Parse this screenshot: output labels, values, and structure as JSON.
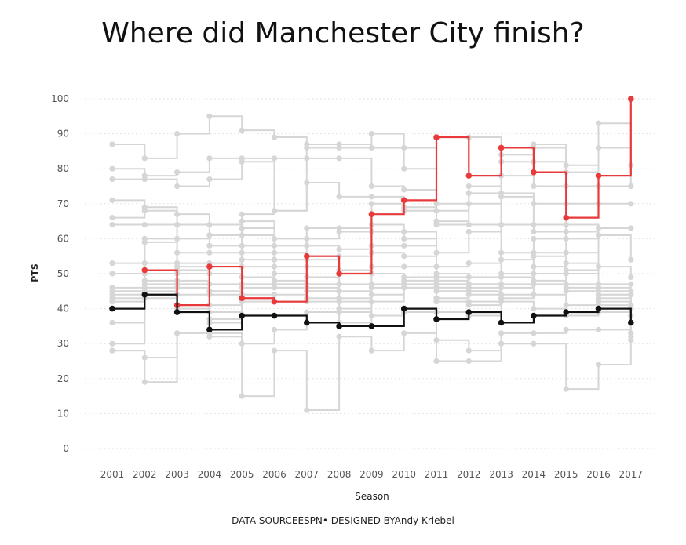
{
  "chart_data": {
    "type": "line",
    "title": "Where did Manchester City finish?",
    "xlabel": "Season",
    "ylabel": "PTS",
    "ylim": [
      0,
      100
    ],
    "yticks": [
      0,
      10,
      20,
      30,
      40,
      50,
      60,
      70,
      80,
      90,
      100
    ],
    "categories": [
      "2001",
      "2002",
      "2003",
      "2004",
      "2005",
      "2006",
      "2007",
      "2008",
      "2009",
      "2010",
      "2011",
      "2012",
      "2013",
      "2014",
      "2015",
      "2016",
      "2017"
    ],
    "line_shape": "step",
    "grid": "horizontal dotted",
    "series": [
      {
        "name": "",
        "color": "#e83a3a",
        "values": [
          null,
          51,
          41,
          52,
          43,
          42,
          55,
          50,
          67,
          71,
          89,
          78,
          86,
          79,
          66,
          78,
          100
        ]
      },
      {
        "name": "",
        "color": "#111111",
        "values": [
          40,
          44,
          39,
          34,
          38,
          38,
          36,
          35,
          35,
          40,
          37,
          39,
          36,
          38,
          39,
          40,
          36
        ]
      },
      {
        "name": "",
        "color": "#d6d6d6",
        "values": [
          87,
          83,
          90,
          95,
          91,
          89,
          87,
          86,
          90,
          86,
          89,
          89,
          86,
          87,
          81,
          93,
          81
        ]
      },
      {
        "name": "",
        "color": "#d6d6d6",
        "values": [
          80,
          78,
          79,
          83,
          83,
          83,
          86,
          87,
          86,
          80,
          70,
          75,
          84,
          86,
          79,
          86,
          75
        ]
      },
      {
        "name": "",
        "color": "#d6d6d6",
        "values": [
          77,
          77,
          75,
          77,
          82,
          68,
          83,
          83,
          75,
          74,
          68,
          73,
          82,
          82,
          75,
          75,
          75
        ]
      },
      {
        "name": "",
        "color": "#d6d6d6",
        "values": [
          71,
          69,
          67,
          64,
          67,
          68,
          76,
          72,
          72,
          69,
          65,
          70,
          78,
          75,
          70,
          70,
          70
        ]
      },
      {
        "name": "",
        "color": "#d6d6d6",
        "values": [
          66,
          68,
          64,
          61,
          65,
          60,
          63,
          63,
          70,
          68,
          64,
          64,
          73,
          70,
          64,
          63,
          63
        ]
      },
      {
        "name": "",
        "color": "#d6d6d6",
        "values": [
          64,
          64,
          60,
          58,
          63,
          58,
          60,
          62,
          64,
          62,
          56,
          62,
          72,
          64,
          62,
          61,
          54
        ]
      },
      {
        "name": "",
        "color": "#d6d6d6",
        "values": [
          53,
          60,
          56,
          56,
          61,
          56,
          58,
          57,
          62,
          60,
          52,
          53,
          64,
          62,
          60,
          52,
          49
        ]
      },
      {
        "name": "",
        "color": "#d6d6d6",
        "values": [
          50,
          59,
          53,
          53,
          58,
          54,
          55,
          55,
          58,
          58,
          50,
          49,
          56,
          60,
          56,
          47,
          47
        ]
      },
      {
        "name": "",
        "color": "#d6d6d6",
        "values": [
          46,
          53,
          52,
          50,
          56,
          54,
          54,
          51,
          56,
          55,
          49,
          47,
          54,
          56,
          53,
          46,
          45
        ]
      },
      {
        "name": "",
        "color": "#d6d6d6",
        "values": [
          45,
          50,
          51,
          47,
          54,
          52,
          52,
          47,
          52,
          52,
          48,
          47,
          50,
          55,
          51,
          45,
          44
        ]
      },
      {
        "name": "",
        "color": "#d6d6d6",
        "values": [
          44,
          48,
          50,
          45,
          52,
          50,
          49,
          45,
          50,
          49,
          47,
          46,
          49,
          52,
          50,
          44,
          41
        ]
      },
      {
        "name": "",
        "color": "#d6d6d6",
        "values": [
          43,
          47,
          48,
          44,
          49,
          48,
          47,
          43,
          47,
          48,
          46,
          45,
          47,
          50,
          47,
          44,
          40
        ]
      },
      {
        "name": "",
        "color": "#d6d6d6",
        "values": [
          42,
          46,
          47,
          41,
          47,
          47,
          46,
          42,
          46,
          47,
          45,
          44,
          46,
          48,
          46,
          43,
          38
        ]
      },
      {
        "name": "",
        "color": "#d6d6d6",
        "values": [
          42,
          45,
          46,
          39,
          46,
          46,
          45,
          40,
          44,
          46,
          43,
          42,
          44,
          47,
          45,
          42,
          36
        ]
      },
      {
        "name": "",
        "color": "#d6d6d6",
        "values": [
          36,
          44,
          44,
          37,
          44,
          44,
          43,
          39,
          42,
          46,
          42,
          41,
          43,
          44,
          41,
          41,
          33
        ]
      },
      {
        "name": "",
        "color": "#d6d6d6",
        "values": [
          30,
          43,
          40,
          36,
          42,
          42,
          42,
          36,
          38,
          40,
          39,
          38,
          42,
          40,
          38,
          39,
          32
        ]
      },
      {
        "name": "",
        "color": "#d6d6d6",
        "values": [
          28,
          26,
          33,
          33,
          30,
          34,
          39,
          35,
          35,
          39,
          31,
          28,
          33,
          33,
          34,
          34,
          31
        ]
      },
      {
        "name": "",
        "color": "#d6d6d6",
        "values": [
          28,
          19,
          33,
          32,
          15,
          28,
          11,
          32,
          28,
          33,
          25,
          25,
          30,
          30,
          17,
          24,
          31
        ]
      }
    ]
  },
  "footer": {
    "data_source_label": "DATA SOURCE",
    "data_source": "ESPN",
    "separator": "• DESIGNED BY",
    "designer": "Andy Kriebel"
  }
}
